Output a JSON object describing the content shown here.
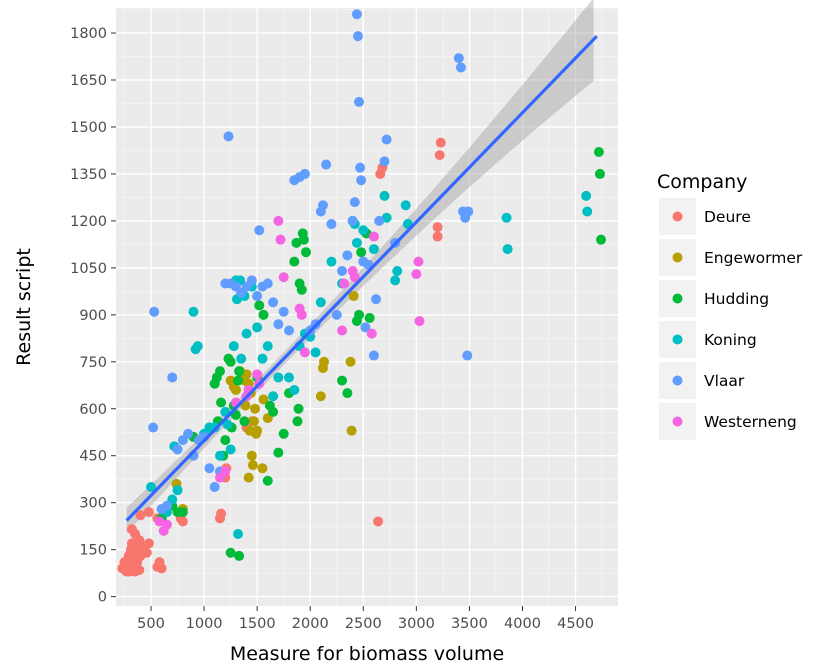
{
  "chart_data": {
    "type": "scatter",
    "title": "",
    "xlabel": "Measure for biomass volume",
    "ylabel": "Result script",
    "xlim": [
      170,
      4900
    ],
    "ylim": [
      -30,
      1880
    ],
    "x_ticks": [
      500,
      1000,
      1500,
      2000,
      2500,
      3000,
      3500,
      4000,
      4500
    ],
    "y_ticks": [
      0,
      150,
      300,
      450,
      600,
      750,
      900,
      1050,
      1200,
      1350,
      1500,
      1650,
      1800
    ],
    "grid": true,
    "legend": {
      "title": "Company",
      "position": "right"
    },
    "trend_line": {
      "method": "linear",
      "x": [
        270,
        4700
      ],
      "y": [
        243,
        1790
      ],
      "ci": true,
      "color": "#3366ff"
    },
    "series": [
      {
        "name": "Deure",
        "color": "#f8766d",
        "points": [
          [
            230,
            90
          ],
          [
            250,
            110
          ],
          [
            270,
            100
          ],
          [
            290,
            130
          ],
          [
            300,
            80
          ],
          [
            310,
            150
          ],
          [
            320,
            170
          ],
          [
            330,
            90
          ],
          [
            340,
            120
          ],
          [
            350,
            200
          ],
          [
            360,
            140
          ],
          [
            370,
            110
          ],
          [
            380,
            160
          ],
          [
            390,
            180
          ],
          [
            400,
            130
          ],
          [
            420,
            150
          ],
          [
            440,
            160
          ],
          [
            460,
            140
          ],
          [
            480,
            170
          ],
          [
            320,
            215
          ],
          [
            350,
            100
          ],
          [
            300,
            110
          ],
          [
            390,
            85
          ],
          [
            270,
            80
          ],
          [
            350,
            80
          ],
          [
            560,
            95
          ],
          [
            580,
            110
          ],
          [
            600,
            90
          ],
          [
            400,
            260
          ],
          [
            480,
            270
          ],
          [
            560,
            250
          ],
          [
            620,
            270
          ],
          [
            780,
            250
          ],
          [
            800,
            240
          ],
          [
            1150,
            250
          ],
          [
            1160,
            265
          ],
          [
            1200,
            380
          ],
          [
            1210,
            410
          ],
          [
            1400,
            540
          ],
          [
            1450,
            560
          ],
          [
            2640,
            240
          ],
          [
            3200,
            1150
          ],
          [
            3200,
            1180
          ],
          [
            3220,
            1410
          ],
          [
            3230,
            1450
          ],
          [
            2660,
            1350
          ],
          [
            2680,
            1370
          ]
        ]
      },
      {
        "name": "Engewormer",
        "color": "#b79f00",
        "points": [
          [
            740,
            360
          ],
          [
            800,
            280
          ],
          [
            1250,
            690
          ],
          [
            1280,
            670
          ],
          [
            1300,
            660
          ],
          [
            1340,
            720
          ],
          [
            1360,
            700
          ],
          [
            1380,
            690
          ],
          [
            1390,
            610
          ],
          [
            1400,
            710
          ],
          [
            1420,
            680
          ],
          [
            1430,
            530
          ],
          [
            1440,
            650
          ],
          [
            1450,
            450
          ],
          [
            1460,
            420
          ],
          [
            1470,
            560
          ],
          [
            1480,
            600
          ],
          [
            1490,
            520
          ],
          [
            1500,
            530
          ],
          [
            1550,
            410
          ],
          [
            1560,
            630
          ],
          [
            1600,
            570
          ],
          [
            1420,
            380
          ],
          [
            2100,
            640
          ],
          [
            2120,
            730
          ],
          [
            2130,
            750
          ],
          [
            2380,
            750
          ],
          [
            2390,
            530
          ],
          [
            2410,
            960
          ]
        ]
      },
      {
        "name": "Hudding",
        "color": "#00ba38",
        "points": [
          [
            600,
            250
          ],
          [
            700,
            290
          ],
          [
            750,
            270
          ],
          [
            800,
            270
          ],
          [
            900,
            510
          ],
          [
            1050,
            540
          ],
          [
            1100,
            680
          ],
          [
            1120,
            700
          ],
          [
            1130,
            560
          ],
          [
            1150,
            720
          ],
          [
            1160,
            620
          ],
          [
            1180,
            450
          ],
          [
            1200,
            500
          ],
          [
            1230,
            760
          ],
          [
            1250,
            750
          ],
          [
            1260,
            540
          ],
          [
            1280,
            610
          ],
          [
            1300,
            580
          ],
          [
            1320,
            690
          ],
          [
            1330,
            720
          ],
          [
            1250,
            140
          ],
          [
            1330,
            130
          ],
          [
            1380,
            560
          ],
          [
            1500,
            700
          ],
          [
            1520,
            930
          ],
          [
            1560,
            900
          ],
          [
            1600,
            370
          ],
          [
            1620,
            610
          ],
          [
            1650,
            590
          ],
          [
            1700,
            460
          ],
          [
            1750,
            520
          ],
          [
            1800,
            650
          ],
          [
            1850,
            1070
          ],
          [
            1870,
            1130
          ],
          [
            1880,
            560
          ],
          [
            1890,
            600
          ],
          [
            1900,
            1000
          ],
          [
            1920,
            980
          ],
          [
            1930,
            1160
          ],
          [
            1940,
            1140
          ],
          [
            1960,
            1100
          ],
          [
            2300,
            690
          ],
          [
            2350,
            650
          ],
          [
            2440,
            880
          ],
          [
            2460,
            900
          ],
          [
            2480,
            1100
          ],
          [
            2530,
            1160
          ],
          [
            2560,
            890
          ],
          [
            4720,
            1420
          ],
          [
            4730,
            1350
          ],
          [
            4740,
            1140
          ]
        ]
      },
      {
        "name": "Koning",
        "color": "#00bfc4",
        "points": [
          [
            500,
            350
          ],
          [
            650,
            270
          ],
          [
            700,
            310
          ],
          [
            720,
            480
          ],
          [
            750,
            340
          ],
          [
            900,
            910
          ],
          [
            920,
            790
          ],
          [
            940,
            800
          ],
          [
            1000,
            520
          ],
          [
            1050,
            540
          ],
          [
            1100,
            540
          ],
          [
            1150,
            450
          ],
          [
            1200,
            590
          ],
          [
            1220,
            550
          ],
          [
            1250,
            470
          ],
          [
            1280,
            800
          ],
          [
            1300,
            1010
          ],
          [
            1310,
            950
          ],
          [
            1320,
            200
          ],
          [
            1340,
            1010
          ],
          [
            1350,
            760
          ],
          [
            1380,
            960
          ],
          [
            1400,
            840
          ],
          [
            1450,
            990
          ],
          [
            1500,
            860
          ],
          [
            1550,
            760
          ],
          [
            1600,
            800
          ],
          [
            1650,
            640
          ],
          [
            1700,
            700
          ],
          [
            1800,
            700
          ],
          [
            1850,
            660
          ],
          [
            1900,
            800
          ],
          [
            1950,
            840
          ],
          [
            2000,
            830
          ],
          [
            2050,
            780
          ],
          [
            2100,
            940
          ],
          [
            2200,
            1070
          ],
          [
            2300,
            1000
          ],
          [
            2400,
            1200
          ],
          [
            2420,
            1190
          ],
          [
            2440,
            1130
          ],
          [
            2500,
            1170
          ],
          [
            2600,
            1110
          ],
          [
            2700,
            1280
          ],
          [
            2720,
            1210
          ],
          [
            2800,
            1010
          ],
          [
            2820,
            1040
          ],
          [
            2900,
            1250
          ],
          [
            2920,
            1190
          ],
          [
            3850,
            1210
          ],
          [
            3860,
            1110
          ],
          [
            4600,
            1280
          ],
          [
            4610,
            1230
          ]
        ]
      },
      {
        "name": "Vlaar",
        "color": "#619cff",
        "points": [
          [
            520,
            540
          ],
          [
            530,
            910
          ],
          [
            600,
            280
          ],
          [
            650,
            290
          ],
          [
            700,
            700
          ],
          [
            750,
            470
          ],
          [
            800,
            500
          ],
          [
            850,
            520
          ],
          [
            900,
            450
          ],
          [
            950,
            500
          ],
          [
            1000,
            510
          ],
          [
            1050,
            410
          ],
          [
            1100,
            350
          ],
          [
            1150,
            400
          ],
          [
            1200,
            1000
          ],
          [
            1230,
            1470
          ],
          [
            1250,
            1000
          ],
          [
            1300,
            990
          ],
          [
            1350,
            970
          ],
          [
            1400,
            990
          ],
          [
            1450,
            1010
          ],
          [
            1500,
            960
          ],
          [
            1520,
            1170
          ],
          [
            1550,
            990
          ],
          [
            1600,
            1000
          ],
          [
            1650,
            940
          ],
          [
            1700,
            870
          ],
          [
            1750,
            910
          ],
          [
            1800,
            850
          ],
          [
            1850,
            1330
          ],
          [
            1900,
            1340
          ],
          [
            1950,
            1350
          ],
          [
            2000,
            850
          ],
          [
            2050,
            870
          ],
          [
            2100,
            1230
          ],
          [
            2120,
            1250
          ],
          [
            2150,
            1380
          ],
          [
            2200,
            1190
          ],
          [
            2250,
            900
          ],
          [
            2300,
            1040
          ],
          [
            2350,
            1090
          ],
          [
            2400,
            1200
          ],
          [
            2420,
            1260
          ],
          [
            2440,
            1860
          ],
          [
            2450,
            1790
          ],
          [
            2460,
            1580
          ],
          [
            2470,
            1370
          ],
          [
            2480,
            1330
          ],
          [
            2500,
            1070
          ],
          [
            2520,
            860
          ],
          [
            2550,
            1060
          ],
          [
            2600,
            770
          ],
          [
            2620,
            950
          ],
          [
            2650,
            1200
          ],
          [
            2700,
            1390
          ],
          [
            2720,
            1460
          ],
          [
            2800,
            1130
          ],
          [
            3400,
            1720
          ],
          [
            3420,
            1690
          ],
          [
            3440,
            1230
          ],
          [
            3460,
            1210
          ],
          [
            3480,
            770
          ],
          [
            3490,
            1230
          ]
        ]
      },
      {
        "name": "Westerneng",
        "color": "#f564e3",
        "points": [
          [
            580,
            240
          ],
          [
            620,
            210
          ],
          [
            650,
            230
          ],
          [
            1150,
            380
          ],
          [
            1200,
            400
          ],
          [
            1300,
            620
          ],
          [
            1400,
            640
          ],
          [
            1420,
            660
          ],
          [
            1500,
            710
          ],
          [
            1520,
            680
          ],
          [
            1700,
            1200
          ],
          [
            1720,
            1140
          ],
          [
            1750,
            1020
          ],
          [
            1900,
            920
          ],
          [
            1920,
            900
          ],
          [
            1950,
            780
          ],
          [
            2300,
            850
          ],
          [
            2320,
            1000
          ],
          [
            2400,
            1040
          ],
          [
            2420,
            1020
          ],
          [
            2580,
            840
          ],
          [
            2600,
            1150
          ],
          [
            3000,
            1030
          ],
          [
            3020,
            1070
          ],
          [
            3030,
            880
          ]
        ]
      }
    ]
  }
}
